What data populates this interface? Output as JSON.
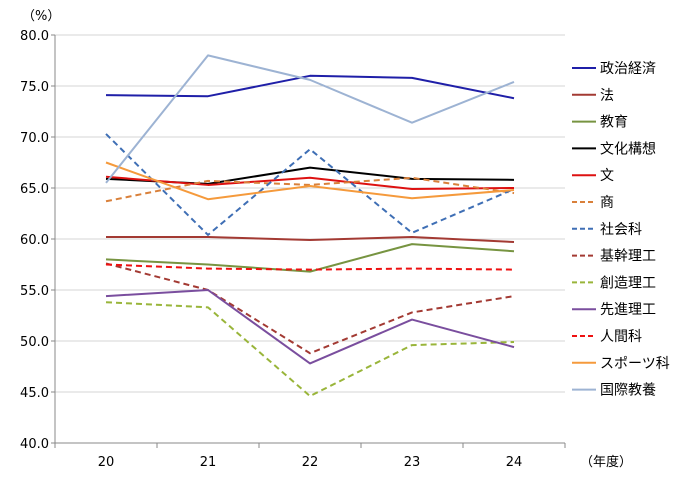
{
  "chart_data": {
    "type": "line",
    "y_unit_label": "（%）",
    "x_unit_label": "（年度）",
    "categories": [
      "20",
      "21",
      "22",
      "23",
      "24"
    ],
    "ylim": [
      40.0,
      80.0
    ],
    "y_ticks": [
      "80.0",
      "75.0",
      "70.0",
      "65.0",
      "60.0",
      "55.0",
      "50.0",
      "45.0",
      "40.0"
    ],
    "grid": "horizontal",
    "legend_position": "right",
    "series": [
      {
        "name": "政治経済",
        "color": "#1f1fa8",
        "dash": "solid",
        "values": [
          74.1,
          74.0,
          76.0,
          75.8,
          73.8
        ]
      },
      {
        "name": "法",
        "color": "#a33a33",
        "dash": "solid",
        "values": [
          60.2,
          60.2,
          59.9,
          60.2,
          59.7
        ]
      },
      {
        "name": "教育",
        "color": "#779441",
        "dash": "solid",
        "values": [
          58.0,
          57.5,
          56.8,
          59.5,
          58.8
        ]
      },
      {
        "name": "文化構想",
        "color": "#000000",
        "dash": "solid",
        "values": [
          65.9,
          65.4,
          67.0,
          65.9,
          65.8
        ]
      },
      {
        "name": "文",
        "color": "#dd1111",
        "dash": "solid",
        "values": [
          66.1,
          65.3,
          66.0,
          64.9,
          65.0
        ]
      },
      {
        "name": "商",
        "color": "#d9803a",
        "dash": "dashed",
        "values": [
          63.7,
          65.7,
          65.3,
          66.0,
          64.5
        ]
      },
      {
        "name": "社会科",
        "color": "#3f6fb5",
        "dash": "dashed",
        "values": [
          70.3,
          60.4,
          68.8,
          60.6,
          64.9
        ]
      },
      {
        "name": "基幹理工",
        "color": "#a33a33",
        "dash": "dashed",
        "values": [
          57.6,
          55.0,
          48.8,
          52.8,
          54.4
        ]
      },
      {
        "name": "創造理工",
        "color": "#99b53a",
        "dash": "dashed",
        "values": [
          53.8,
          53.3,
          44.6,
          49.6,
          49.9
        ]
      },
      {
        "name": "先進理工",
        "color": "#7a4e9e",
        "dash": "solid",
        "values": [
          54.4,
          55.0,
          47.8,
          52.1,
          49.4
        ]
      },
      {
        "name": "人間科",
        "color": "#ee1111",
        "dash": "dashed",
        "values": [
          57.5,
          57.1,
          57.0,
          57.1,
          57.0
        ]
      },
      {
        "name": "スポーツ科",
        "color": "#f59a3c",
        "dash": "solid",
        "values": [
          67.5,
          63.9,
          65.2,
          64.0,
          64.8
        ]
      },
      {
        "name": "国際教養",
        "color": "#9db3d3",
        "dash": "solid",
        "values": [
          65.5,
          78.0,
          75.6,
          71.4,
          75.4
        ]
      }
    ]
  }
}
